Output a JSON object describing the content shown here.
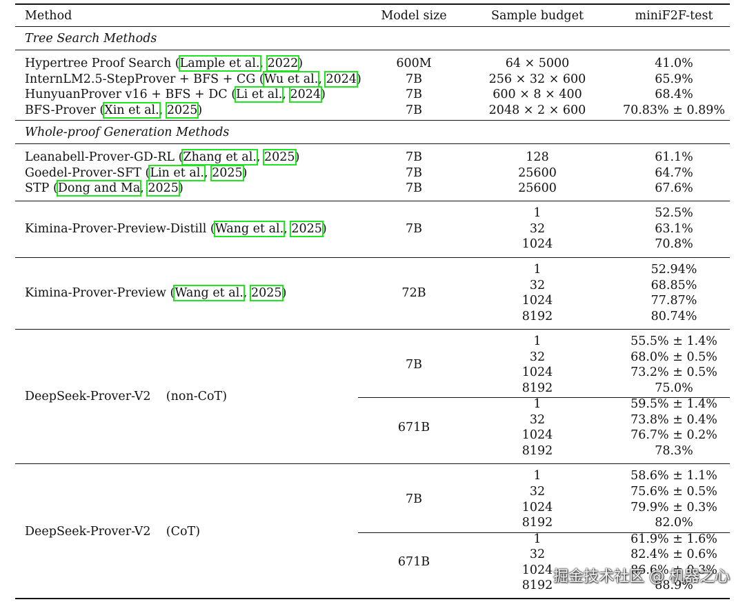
{
  "header": {
    "method": "Method",
    "model_size": "Model size",
    "sample_budget": "Sample budget",
    "metric": "miniF2F-test"
  },
  "sections": {
    "tree": "Tree Search Methods",
    "whole": "Whole-proof Generation Methods"
  },
  "tree_rows": [
    {
      "name": "Hypertree Proof Search (",
      "c1": "Lample et al.",
      "sep": ", ",
      "c2": "2022",
      "end": ")",
      "size": "600M",
      "budget": "64 × 5000",
      "score": "41.0%"
    },
    {
      "name": "InternLM2.5-StepProver + BFS + CG (",
      "c1": "Wu et al.",
      "sep": ", ",
      "c2": "2024",
      "end": ")",
      "size": "7B",
      "budget": "256 × 32 × 600",
      "score": "65.9%"
    },
    {
      "name": "HunyuanProver v16 + BFS + DC (",
      "c1": "Li et al.",
      "sep": ", ",
      "c2": "2024",
      "end": ")",
      "size": "7B",
      "budget": "600 × 8 × 400",
      "score": "68.4%"
    },
    {
      "name": "BFS-Prover (",
      "c1": "Xin et al.",
      "sep": ", ",
      "c2": "2025",
      "end": ")",
      "size": "7B",
      "budget": "2048 × 2 × 600",
      "score": "70.83% ± 0.89%"
    }
  ],
  "whole_rows": [
    {
      "name": "Leanabell-Prover-GD-RL (",
      "c1": "Zhang et al.",
      "sep": ", ",
      "c2": "2025",
      "end": ")",
      "size": "7B",
      "budget": "128",
      "score": "61.1%"
    },
    {
      "name": "Goedel-Prover-SFT (",
      "c1": "Lin et al.",
      "sep": ", ",
      "c2": "2025",
      "end": ")",
      "size": "7B",
      "budget": "25600",
      "score": "64.7%"
    },
    {
      "name": "STP (",
      "c1": "Dong and Ma",
      "sep": ", ",
      "c2": "2025",
      "end": ")",
      "size": "7B",
      "budget": "25600",
      "score": "67.6%"
    }
  ],
  "kimina_distill": {
    "name": "Kimina-Prover-Preview-Distill (",
    "c1": "Wang et al.",
    "sep": ", ",
    "c2": "2025",
    "end": ")",
    "size": "7B",
    "budgets": [
      "1",
      "32",
      "1024"
    ],
    "scores": [
      "52.5%",
      "63.1%",
      "70.8%"
    ]
  },
  "kimina": {
    "name": "Kimina-Prover-Preview (",
    "c1": "Wang et al.",
    "sep": ", ",
    "c2": "2025",
    "end": ")",
    "size": "72B",
    "budgets": [
      "1",
      "32",
      "1024",
      "8192"
    ],
    "scores": [
      "52.94%",
      "68.85%",
      "77.87%",
      "80.74%"
    ]
  },
  "ds_noncot": {
    "name": "DeepSeek-Prover-V2    (non-CoT)",
    "a_size": "7B",
    "a_budgets": [
      "1",
      "32",
      "1024",
      "8192"
    ],
    "a_scores": [
      "55.5% ± 1.4%",
      "68.0% ± 0.5%",
      "73.2% ± 0.5%",
      "75.0%"
    ],
    "b_size": "671B",
    "b_budgets": [
      "1",
      "32",
      "1024",
      "8192"
    ],
    "b_scores": [
      "59.5% ± 1.4%",
      "73.8% ± 0.4%",
      "76.7% ± 0.2%",
      "78.3%"
    ]
  },
  "ds_cot": {
    "name": "DeepSeek-Prover-V2    (CoT)",
    "a_size": "7B",
    "a_budgets": [
      "1",
      "32",
      "1024",
      "8192"
    ],
    "a_scores": [
      "58.6% ± 1.1%",
      "75.6% ± 0.5%",
      "79.9% ± 0.3%",
      "82.0%"
    ],
    "b_size": "671B",
    "b_budgets": [
      "1",
      "32",
      "1024",
      "8192"
    ],
    "b_scores": [
      "61.9% ± 1.6%",
      "82.4% ± 0.6%",
      "86.6% ± 0.3%",
      "88.9%"
    ]
  },
  "watermark": "掘金技术社区 @ 机器之心"
}
